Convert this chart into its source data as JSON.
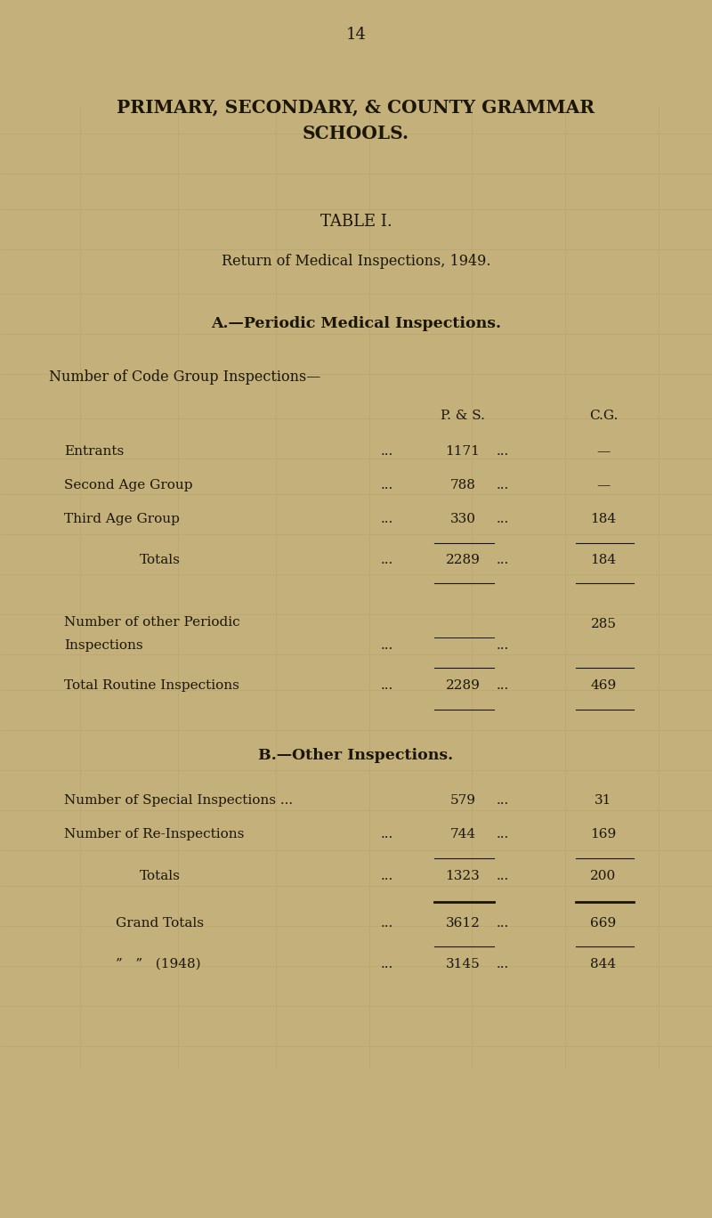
{
  "page_number": "14",
  "bg_color": "#c4b07a",
  "text_color": "#1a1505",
  "title_line1": "PRIMARY, SECONDARY, & COUNTY GRAMMAR",
  "title_line2": "SCHOOLS.",
  "table_title": "TABLE I.",
  "subtitle": "Return of Medical Inspections, 1949.",
  "section_a_title": "A.—Periodic Medical Inspections.",
  "section_a_sub": "Number of Code Group Inspections—",
  "col_ps": "P. & S.",
  "col_cg": "C.G.",
  "rows_a": [
    {
      "label": "Entrants",
      "ps": "1171",
      "cg": "—"
    },
    {
      "label": "Second Age Group",
      "ps": "788",
      "cg": "—"
    },
    {
      "label": "Third Age Group",
      "ps": "330",
      "cg": "184"
    }
  ],
  "totals_a_label": "Totals",
  "totals_a_ps": "2289",
  "totals_a_cg": "184",
  "other_periodic_label1": "Number of other Periodic",
  "other_periodic_label2": "Inspections",
  "other_periodic_cg": "285",
  "total_routine_label": "Total Routine Inspections",
  "total_routine_ps": "2289",
  "total_routine_cg": "469",
  "section_b_title": "B.—Other Inspections.",
  "special_label": "Number of Special Inspections ...",
  "special_ps": "579",
  "special_cg": "31",
  "reinspect_label": "Number of Re-Inspections",
  "reinspect_ps": "744",
  "reinspect_cg": "169",
  "totals_b_label": "Totals",
  "totals_b_ps": "1323",
  "totals_b_cg": "200",
  "grand_totals_label": "Grand Totals",
  "grand_totals_ps": "3612",
  "grand_totals_cg": "669",
  "grand_1948_label": "”   ”   (1948)",
  "grand_1948_ps": "3145",
  "grand_1948_cg": "844",
  "dots": "..."
}
